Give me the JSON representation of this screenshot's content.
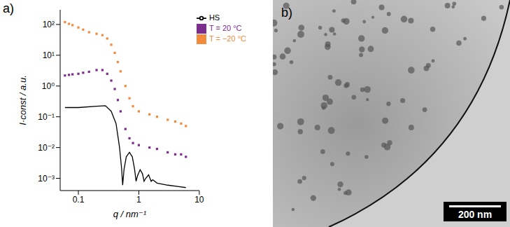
{
  "chart_data": {
    "type": "scatter",
    "annotations": [
      "a)"
    ],
    "xlabel": "q / nm⁻¹",
    "ylabel": "I·const / a.u.",
    "log": true,
    "grid": false,
    "legend": "upper right",
    "xlim": [
      0.05,
      10
    ],
    "ylim": [
      0.0004,
      300
    ],
    "xticks": [
      0.1,
      1,
      10
    ],
    "yticks": [
      {
        "value": 0.001,
        "label": "10⁻³"
      },
      {
        "value": 0.01,
        "label": "10⁻²"
      },
      {
        "value": 0.1,
        "label": "10⁻¹"
      },
      {
        "value": 1,
        "label": "10⁰"
      },
      {
        "value": 10,
        "label": "10¹"
      },
      {
        "value": 100,
        "label": "10²"
      }
    ],
    "series": [
      {
        "name": "T = −20 °C",
        "color": "#f28a3c",
        "type": "scatter",
        "marker": "square",
        "x": [
          0.06,
          0.07,
          0.08,
          0.1,
          0.12,
          0.15,
          0.2,
          0.25,
          0.3,
          0.35,
          0.4,
          0.45,
          0.5,
          0.6,
          0.7,
          0.8,
          1,
          1.5,
          2,
          3,
          4,
          5,
          6
        ],
        "values": [
          120,
          105,
          95,
          80,
          68,
          56,
          50,
          45,
          35,
          22,
          12,
          6,
          3,
          1,
          0.4,
          0.22,
          0.15,
          0.12,
          0.1,
          0.08,
          0.07,
          0.06,
          0.05
        ]
      },
      {
        "name": "T = 20 °C",
        "color": "#7b2d8e",
        "type": "scatter",
        "marker": "square",
        "x": [
          0.06,
          0.07,
          0.08,
          0.1,
          0.12,
          0.15,
          0.2,
          0.25,
          0.3,
          0.35,
          0.4,
          0.45,
          0.5,
          0.6,
          0.7,
          0.8,
          1,
          1.5,
          2,
          3,
          4,
          5,
          6
        ],
        "values": [
          2.2,
          2.3,
          2.4,
          2.5,
          2.7,
          2.9,
          3.3,
          3.3,
          2.5,
          1.5,
          0.8,
          0.35,
          0.15,
          0.04,
          0.02,
          0.014,
          0.012,
          0.01,
          0.009,
          0.007,
          0.006,
          0.006,
          0.005
        ]
      },
      {
        "name": "HS",
        "color": "#000000",
        "type": "line",
        "marker": "none",
        "line_style": "solid",
        "x": [
          0.06,
          0.1,
          0.2,
          0.28,
          0.35,
          0.42,
          0.48,
          0.52,
          0.54,
          0.57,
          0.62,
          0.7,
          0.78,
          0.85,
          0.9,
          0.95,
          1.05,
          1.15,
          1.22,
          1.3,
          1.45,
          1.6,
          1.7,
          2,
          3,
          6
        ],
        "values": [
          0.2,
          0.2,
          0.22,
          0.23,
          0.15,
          0.06,
          0.01,
          0.002,
          0.0006,
          0.002,
          0.005,
          0.007,
          0.005,
          0.002,
          0.0008,
          0.0012,
          0.0019,
          0.0014,
          0.0008,
          0.001,
          0.0013,
          0.0008,
          0.0009,
          0.0007,
          0.0006,
          0.0005
        ]
      }
    ]
  },
  "image": {
    "label": "b)",
    "scale_bar": "200 nm"
  }
}
